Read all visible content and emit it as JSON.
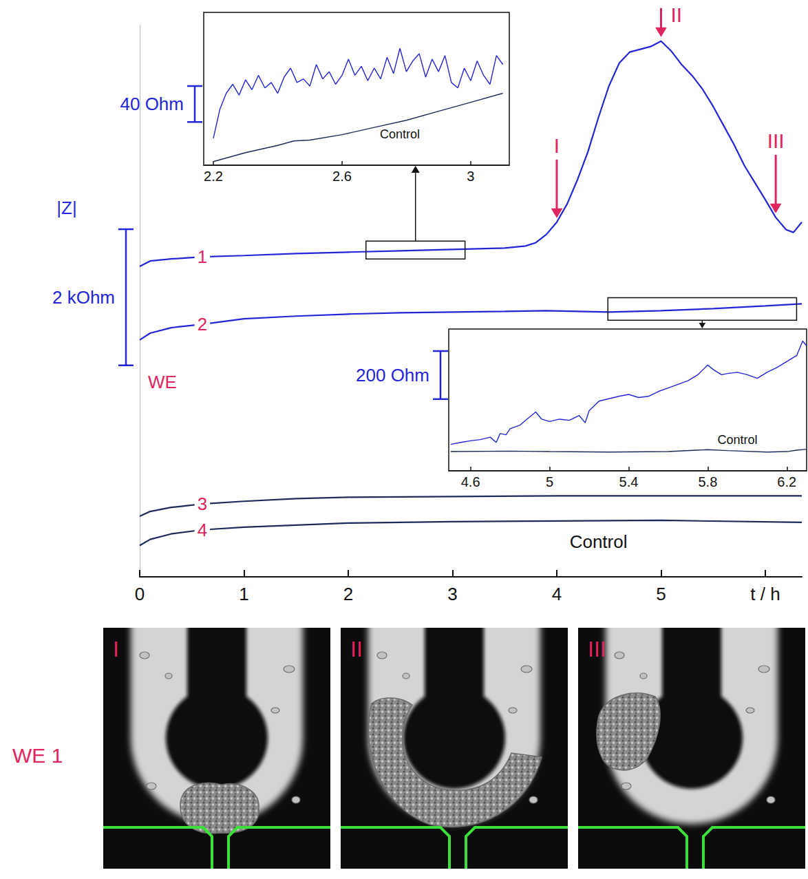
{
  "chart_data": [
    {
      "type": "line",
      "xlim": [
        0,
        6.35
      ],
      "xticks": [
        0,
        1,
        2,
        3,
        4,
        5,
        {
          "value": 6,
          "label": "t / h"
        }
      ],
      "ylim": [
        -3100,
        5000
      ],
      "tick_labels": "x",
      "grid": false,
      "y_label": "|Z|",
      "scale_bar": {
        "value": 2000,
        "label": "2 kOhm"
      },
      "row_label": "WE",
      "control_label": "Control",
      "annotations": [
        {
          "text": "I",
          "x": 4.0
        },
        {
          "text": "II",
          "x": 5.0
        },
        {
          "text": "III",
          "x": 6.1
        }
      ],
      "series": [
        {
          "name": "1",
          "color": "#2424d8",
          "x": [
            0,
            0.1,
            0.3,
            0.6,
            1.0,
            1.5,
            2.0,
            2.5,
            3.0,
            3.5,
            3.7,
            3.8,
            3.9,
            4.0,
            4.1,
            4.2,
            4.3,
            4.4,
            4.5,
            4.6,
            4.7,
            4.8,
            4.9,
            5.0,
            5.1,
            5.2,
            5.3,
            5.4,
            5.5,
            5.6,
            5.7,
            5.8,
            5.9,
            6.0,
            6.1,
            6.2,
            6.27,
            6.35
          ],
          "values": [
            1460,
            1540,
            1570,
            1600,
            1620,
            1650,
            1670,
            1690,
            1710,
            1730,
            1760,
            1810,
            1930,
            2110,
            2380,
            2740,
            3150,
            3650,
            4110,
            4450,
            4610,
            4650,
            4690,
            4770,
            4620,
            4420,
            4260,
            4060,
            3810,
            3530,
            3250,
            2940,
            2690,
            2440,
            2180,
            2000,
            1960,
            2110
          ]
        },
        {
          "name": "2",
          "color": "#2424d8",
          "x": [
            0,
            0.1,
            0.3,
            0.6,
            1.0,
            1.5,
            2.0,
            2.5,
            3.0,
            3.5,
            3.9,
            4.5,
            5.0,
            5.5,
            6.0,
            6.35
          ],
          "values": [
            380,
            480,
            560,
            610,
            690,
            730,
            760,
            780,
            790,
            800,
            810,
            790,
            810,
            840,
            880,
            910
          ]
        },
        {
          "name": "3",
          "color": "#1c2a5c",
          "x": [
            0,
            0.1,
            0.3,
            0.6,
            1.0,
            1.5,
            2.0,
            3.0,
            4.0,
            5.0,
            6.35
          ],
          "values": [
            -2210,
            -2140,
            -2080,
            -2030,
            -1990,
            -1950,
            -1930,
            -1920,
            -1910,
            -1910,
            -1910
          ]
        },
        {
          "name": "4",
          "color": "#1c2a5c",
          "x": [
            0,
            0.1,
            0.3,
            0.6,
            1.0,
            1.5,
            2.0,
            3.0,
            4.0,
            5.0,
            6.35
          ],
          "values": [
            -2640,
            -2550,
            -2470,
            -2410,
            -2370,
            -2340,
            -2310,
            -2290,
            -2280,
            -2270,
            -2300
          ]
        }
      ]
    },
    {
      "type": "line",
      "xlim": [
        2.17,
        3.12
      ],
      "xticks": [
        2.2,
        2.6,
        3
      ],
      "ylim": [
        0,
        170
      ],
      "tick_labels": "x",
      "grid": false,
      "scale_bar": {
        "value": 40,
        "label": "40 Ohm"
      },
      "series": [
        {
          "color": "#2424d8",
          "x": [
            2.2,
            2.22,
            2.24,
            2.26,
            2.28,
            2.3,
            2.32,
            2.34,
            2.36,
            2.38,
            2.4,
            2.42,
            2.44,
            2.46,
            2.48,
            2.5,
            2.52,
            2.54,
            2.56,
            2.58,
            2.6,
            2.62,
            2.64,
            2.66,
            2.68,
            2.7,
            2.72,
            2.74,
            2.76,
            2.78,
            2.8,
            2.82,
            2.84,
            2.86,
            2.88,
            2.9,
            2.92,
            2.94,
            2.96,
            2.98,
            3.0,
            3.02,
            3.04,
            3.06,
            3.08,
            3.1
          ],
          "values": [
            30,
            62,
            80,
            90,
            78,
            95,
            84,
            100,
            86,
            92,
            80,
            98,
            108,
            92,
            96,
            88,
            112,
            96,
            104,
            90,
            100,
            118,
            100,
            110,
            94,
            108,
            96,
            120,
            102,
            130,
            104,
            116,
            124,
            98,
            118,
            104,
            122,
            92,
            86,
            108,
            94,
            116,
            100,
            90,
            122,
            112
          ]
        },
        {
          "name": "Control",
          "color": "#1c2a5c",
          "x": [
            2.2,
            2.3,
            2.4,
            2.45,
            2.5,
            2.6,
            2.7,
            2.8,
            2.9,
            3.0,
            3.1
          ],
          "values": [
            4,
            14,
            22,
            27,
            28,
            34,
            42,
            50,
            60,
            70,
            80
          ]
        }
      ]
    },
    {
      "type": "line",
      "xlim": [
        4.49,
        6.3
      ],
      "xticks": [
        4.6,
        5,
        5.4,
        5.8,
        6.2
      ],
      "ylim": [
        0,
        590
      ],
      "tick_labels": "x",
      "grid": false,
      "scale_bar": {
        "value": 200,
        "label": "200 Ohm"
      },
      "series": [
        {
          "color": "#2424d8",
          "x": [
            4.5,
            4.55,
            4.6,
            4.65,
            4.7,
            4.73,
            4.75,
            4.78,
            4.8,
            4.85,
            4.9,
            4.93,
            4.96,
            5.0,
            5.05,
            5.1,
            5.15,
            5.18,
            5.2,
            5.25,
            5.3,
            5.35,
            5.4,
            5.45,
            5.5,
            5.55,
            5.6,
            5.65,
            5.7,
            5.75,
            5.8,
            5.83,
            5.87,
            5.9,
            5.95,
            6.0,
            6.05,
            6.1,
            6.15,
            6.2,
            6.25,
            6.28,
            6.3
          ],
          "values": [
            110,
            118,
            125,
            130,
            140,
            118,
            155,
            150,
            175,
            190,
            225,
            245,
            215,
            205,
            215,
            210,
            230,
            200,
            250,
            290,
            300,
            310,
            318,
            305,
            310,
            330,
            345,
            360,
            375,
            400,
            440,
            420,
            400,
            405,
            410,
            400,
            385,
            410,
            430,
            455,
            480,
            540,
            520
          ]
        },
        {
          "name": "Control",
          "color": "#1c2a5c",
          "x": [
            4.5,
            4.8,
            5.0,
            5.3,
            5.6,
            5.8,
            5.9,
            6.1,
            6.2,
            6.25,
            6.3
          ],
          "values": [
            80,
            82,
            80,
            78,
            80,
            88,
            84,
            78,
            80,
            86,
            90
          ]
        }
      ]
    }
  ],
  "images": {
    "row_label": "WE 1",
    "panels": [
      "I",
      "II",
      "III"
    ]
  }
}
